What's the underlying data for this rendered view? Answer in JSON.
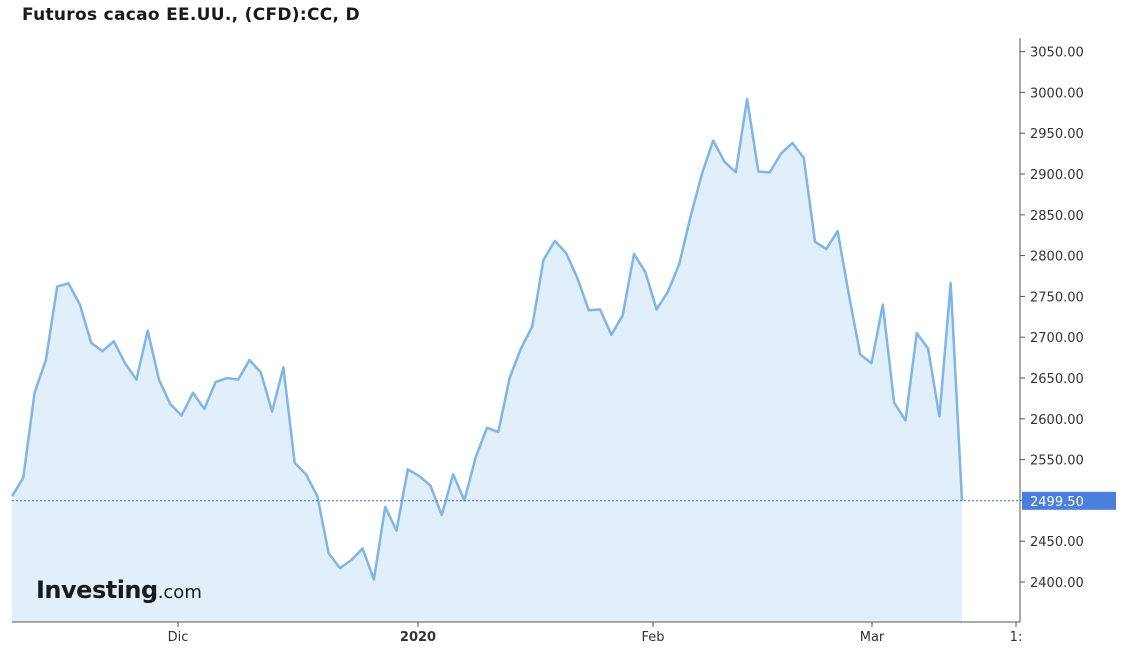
{
  "chart_data": {
    "type": "area",
    "title": "Futuros cacao EE.UU., (CFD):CC, D",
    "ylim": [
      2370,
      3065
    ],
    "y_ticks": [
      "2400.00",
      "2450.00",
      "2500.00",
      "2550.00",
      "2600.00",
      "2650.00",
      "2700.00",
      "2750.00",
      "2800.00",
      "2850.00",
      "2900.00",
      "2950.00",
      "3000.00",
      "3050.00"
    ],
    "x_ticks": [
      "Dic",
      "2020",
      "Feb",
      "Mar",
      "1:"
    ],
    "x_tick_bold": [
      false,
      true,
      false,
      false,
      false
    ],
    "last_price": 2499.5,
    "last_price_label": "2499.50",
    "colors": {
      "line": "#7fb5e8",
      "fill": "#e0eff9",
      "badge": "#4a7fdc",
      "ref_line": "#3a6fd8"
    },
    "grid": false,
    "series": [
      {
        "values": [
          2505,
          2528,
          2632,
          2672,
          2762,
          2766,
          2740,
          2693,
          2683,
          2695,
          2668,
          2648,
          2708,
          2648,
          2618,
          2604,
          2632,
          2612,
          2645,
          2650,
          2648,
          2672,
          2657,
          2609,
          2663,
          2546,
          2532,
          2505,
          2435,
          2417,
          2427,
          2441,
          2403,
          2492,
          2463,
          2538,
          2530,
          2518,
          2482,
          2532,
          2500,
          2553,
          2589,
          2584,
          2650,
          2686,
          2713,
          2795,
          2818,
          2803,
          2772,
          2733,
          2734,
          2703,
          2727,
          2802,
          2780,
          2734,
          2756,
          2790,
          2848,
          2900,
          2941,
          2915,
          2902,
          2992,
          2903,
          2902,
          2925,
          2938,
          2920,
          2817,
          2808,
          2830,
          2752,
          2679,
          2668,
          2740,
          2620,
          2598,
          2705,
          2686,
          2603,
          2766,
          2499.5
        ]
      }
    ]
  },
  "logo": {
    "main": "Investing",
    "suffix": ".com"
  }
}
